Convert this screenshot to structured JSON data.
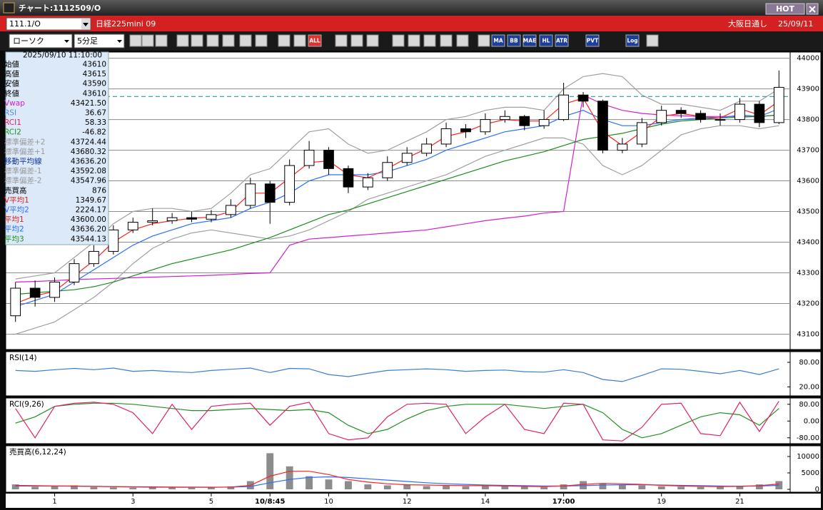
{
  "window": {
    "title": "チャート:1112509/O",
    "hot_button": "HOT"
  },
  "header": {
    "symbol": "111.1/O",
    "name": "日経225mini 09",
    "market": "大阪日通し",
    "date": "25/09/11"
  },
  "toolbar": {
    "chart_style": "ローソク",
    "interval": "5分足",
    "buttons": [
      "ALL",
      "MA",
      "BB",
      "MAE",
      "HL",
      "ATR",
      "PVT",
      "Log"
    ]
  },
  "info_panel": {
    "datetime": "2025/09/10 11:10:00",
    "rows": [
      [
        "始値",
        "43610"
      ],
      [
        "高値",
        "43615"
      ],
      [
        "安値",
        "43590"
      ],
      [
        "終値",
        "43610"
      ],
      [
        "Vwap",
        "43421.50"
      ],
      [
        "RSI",
        "36.67"
      ],
      [
        "RCI1",
        "58.33"
      ],
      [
        "RCI2",
        "-46.82"
      ],
      [
        "標準偏差+2",
        "43724.44"
      ],
      [
        "標準偏差+1",
        "43680.32"
      ],
      [
        "移動平均線",
        "43636.20"
      ],
      [
        "標準偏差-1",
        "43592.08"
      ],
      [
        "標準偏差-2",
        "43547.96"
      ],
      [
        "売買高",
        "876"
      ],
      [
        "V平均1",
        "1349.67"
      ],
      [
        "V平均2",
        "2224.17"
      ],
      [
        "平均1",
        "43600.00"
      ],
      [
        "平均2",
        "43636.20"
      ],
      [
        "平均3",
        "43544.13"
      ]
    ]
  },
  "chart_data": [
    {
      "type": "candlestick",
      "categories": [
        null,
        null,
        "1",
        null,
        null,
        null,
        "3",
        null,
        null,
        null,
        "5",
        null,
        null,
        "10/8:45",
        null,
        null,
        "10",
        null,
        null,
        null,
        "12",
        null,
        null,
        null,
        "14",
        null,
        null,
        null,
        "17:00",
        null,
        null,
        null,
        null,
        "19",
        null,
        null,
        null,
        "21",
        null,
        null
      ],
      "open": [
        43160,
        43250,
        43220,
        43270,
        43330,
        43370,
        43440,
        43465,
        43470,
        43480,
        43475,
        43490,
        43520,
        43590,
        43530,
        43650,
        43700,
        43640,
        43580,
        43610,
        43660,
        43690,
        43720,
        43770,
        43760,
        43800,
        43810,
        43780,
        43800,
        43880,
        43860,
        43700,
        43720,
        43790,
        43830,
        43820,
        43800,
        43800,
        43850,
        43790
      ],
      "high": [
        43270,
        43275,
        43285,
        43345,
        43390,
        43455,
        43480,
        43510,
        43495,
        43500,
        43505,
        43540,
        43610,
        43600,
        43670,
        43730,
        43710,
        43650,
        43625,
        43680,
        43710,
        43740,
        43790,
        43785,
        43820,
        43830,
        43815,
        43830,
        43920,
        43890,
        43865,
        43740,
        43805,
        43845,
        43840,
        43830,
        43820,
        43870,
        43860,
        43960
      ],
      "low": [
        43140,
        43190,
        43205,
        43260,
        43320,
        43360,
        43430,
        43455,
        43460,
        43465,
        43465,
        43480,
        43510,
        43460,
        43520,
        43640,
        43620,
        43560,
        43570,
        43600,
        43650,
        43680,
        43710,
        43740,
        43750,
        43790,
        43765,
        43770,
        43795,
        43840,
        43690,
        43690,
        43710,
        43780,
        43805,
        43790,
        43780,
        43790,
        43775,
        43785
      ],
      "close": [
        43250,
        43220,
        43270,
        43330,
        43370,
        43440,
        43465,
        43470,
        43480,
        43475,
        43490,
        43520,
        43590,
        43530,
        43650,
        43700,
        43640,
        43580,
        43610,
        43660,
        43690,
        43720,
        43770,
        43760,
        43800,
        43810,
        43780,
        43800,
        43880,
        43860,
        43700,
        43720,
        43790,
        43830,
        43820,
        43800,
        43800,
        43850,
        43790,
        43905
      ],
      "series": [
        {
          "color": "#a0a0a0",
          "values": [
            43280,
            43290,
            43300,
            43350,
            43400,
            43460,
            43500,
            43510,
            43510,
            43500,
            43510,
            43560,
            43620,
            43640,
            43700,
            43760,
            43770,
            43720,
            43690,
            43700,
            43730,
            43760,
            43800,
            43810,
            43830,
            43840,
            43840,
            43830,
            43900,
            43940,
            43950,
            43940,
            43880,
            43850,
            43850,
            43840,
            43830,
            43860,
            43860,
            43900
          ]
        },
        {
          "color": "#a0a0a0",
          "values": [
            43100,
            43120,
            43140,
            43180,
            43220,
            43270,
            43330,
            43380,
            43410,
            43430,
            43440,
            43430,
            43420,
            43410,
            43420,
            43440,
            43470,
            43500,
            43540,
            43560,
            43580,
            43600,
            43620,
            43650,
            43680,
            43700,
            43720,
            43740,
            43740,
            43720,
            43650,
            43620,
            43650,
            43700,
            43750,
            43770,
            43780,
            43780,
            43770,
            43780
          ]
        },
        {
          "color": "#d020d0",
          "values": [
            43270,
            43272,
            43275,
            43278,
            43280,
            43282,
            43284,
            43286,
            43288,
            43290,
            43292,
            43295,
            43298,
            43300,
            43390,
            43410,
            43415,
            43420,
            43425,
            43430,
            43435,
            43440,
            43450,
            43460,
            43470,
            43478,
            43485,
            43495,
            43500,
            43880,
            43850,
            43830,
            43820,
            43815,
            43812,
            43810,
            43810,
            43810,
            43810,
            43815
          ]
        },
        {
          "color": "#1a8c1a",
          "values": [
            43230,
            43235,
            43240,
            43245,
            43255,
            43270,
            43290,
            43310,
            43330,
            43345,
            43360,
            43375,
            43395,
            43415,
            43440,
            43465,
            43490,
            43505,
            43525,
            43545,
            43565,
            43585,
            43605,
            43625,
            43645,
            43665,
            43680,
            43695,
            43715,
            43735,
            43745,
            43755,
            43770,
            43785,
            43795,
            43800,
            43805,
            43808,
            43810,
            43815
          ]
        },
        {
          "color": "#2a6fff",
          "values": [
            43190,
            43210,
            43230,
            43270,
            43310,
            43350,
            43390,
            43420,
            43440,
            43460,
            43470,
            43480,
            43510,
            43530,
            43560,
            43600,
            43620,
            43620,
            43620,
            43630,
            43650,
            43670,
            43700,
            43720,
            43740,
            43760,
            43770,
            43780,
            43810,
            43830,
            43800,
            43780,
            43780,
            43790,
            43800,
            43805,
            43805,
            43815,
            43810,
            43835
          ]
        },
        {
          "color": "#ff2020",
          "values": [
            43200,
            43225,
            43240,
            43290,
            43340,
            43400,
            43440,
            43460,
            43470,
            43478,
            43482,
            43500,
            43560,
            43560,
            43610,
            43660,
            43665,
            43620,
            43610,
            43640,
            43675,
            43705,
            43745,
            43760,
            43785,
            43800,
            43795,
            43795,
            43850,
            43870,
            43760,
            43715,
            43760,
            43810,
            43820,
            43810,
            43805,
            43835,
            43815,
            43860
          ]
        }
      ],
      "reference_level": 43875,
      "ylim": [
        43050,
        44020
      ],
      "yticks": [
        43100,
        43200,
        43300,
        43400,
        43500,
        43600,
        43700,
        43800,
        43900,
        44000
      ],
      "grid": true
    },
    {
      "type": "line",
      "title": "RSI(14)",
      "series": [
        {
          "color": "#3a7fd0",
          "values": [
            60,
            58,
            62,
            65,
            62,
            66,
            58,
            60,
            57,
            55,
            60,
            63,
            66,
            55,
            65,
            64,
            50,
            45,
            53,
            60,
            62,
            64,
            62,
            58,
            60,
            61,
            57,
            56,
            62,
            55,
            38,
            33,
            48,
            64,
            63,
            58,
            52,
            60,
            50,
            64
          ]
        }
      ],
      "ylim": [
        -2,
        106
      ],
      "yticks": [
        {
          "value": 80,
          "label": "80.00"
        },
        {
          "value": 20,
          "label": "20.00"
        }
      ],
      "grid": false
    },
    {
      "type": "line",
      "title": "RCI(9,26)",
      "series": [
        {
          "color": "#209020",
          "values": [
            -10,
            20,
            70,
            80,
            85,
            85,
            80,
            70,
            60,
            50,
            50,
            55,
            60,
            55,
            50,
            55,
            40,
            -20,
            -60,
            -40,
            10,
            50,
            70,
            80,
            80,
            80,
            70,
            60,
            70,
            80,
            40,
            -40,
            -80,
            -60,
            -20,
            20,
            40,
            30,
            -20,
            60
          ]
        },
        {
          "color": "#e0206a",
          "values": [
            60,
            -80,
            70,
            85,
            90,
            80,
            40,
            -60,
            80,
            -40,
            70,
            80,
            85,
            -20,
            70,
            90,
            -60,
            -90,
            -80,
            20,
            80,
            85,
            80,
            -60,
            20,
            80,
            -40,
            -60,
            85,
            80,
            -90,
            -95,
            -30,
            80,
            85,
            -60,
            -70,
            90,
            -50,
            95
          ]
        }
      ],
      "ylim": [
        -108,
        110
      ],
      "yticks": [
        {
          "value": 80,
          "label": "80.00"
        },
        {
          "value": 0,
          "label": "0.00"
        },
        {
          "value": -80,
          "label": "-80.00"
        }
      ],
      "grid": false
    },
    {
      "type": "bar",
      "title": "売買高(6,12,24)",
      "color": "#8c8c8c",
      "values": [
        1500,
        800,
        900,
        1200,
        700,
        600,
        500,
        800,
        600,
        500,
        600,
        900,
        2500,
        11000,
        7000,
        4000,
        3000,
        2500,
        1500,
        1200,
        1500,
        1000,
        1300,
        900,
        1200,
        1000,
        800,
        700,
        1500,
        2500,
        1800,
        1500,
        1200,
        900,
        800,
        700,
        900,
        1000,
        1500,
        2500
      ],
      "series": [
        {
          "color": "#2a6fff",
          "values": [
            1000,
            1000,
            1000,
            950,
            900,
            850,
            800,
            750,
            700,
            680,
            660,
            680,
            850,
            2000,
            3000,
            3600,
            3800,
            3600,
            3200,
            2800,
            2400,
            2000,
            1700,
            1500,
            1300,
            1200,
            1100,
            1000,
            1000,
            1100,
            1300,
            1400,
            1400,
            1300,
            1200,
            1100,
            1000,
            950,
            1000,
            1200
          ]
        },
        {
          "color": "#ff2020",
          "values": [
            1200,
            1100,
            1000,
            1000,
            900,
            800,
            700,
            650,
            650,
            600,
            600,
            700,
            1200,
            4000,
            5500,
            5500,
            4500,
            3000,
            2200,
            1700,
            1400,
            1300,
            1200,
            1100,
            1100,
            1000,
            900,
            850,
            1000,
            1500,
            1800,
            1700,
            1500,
            1200,
            1000,
            900,
            850,
            900,
            1100,
            1600
          ]
        }
      ],
      "ylim": [
        -870,
        13260
      ],
      "yticks": [
        0,
        5000,
        10000
      ],
      "grid": false
    }
  ]
}
